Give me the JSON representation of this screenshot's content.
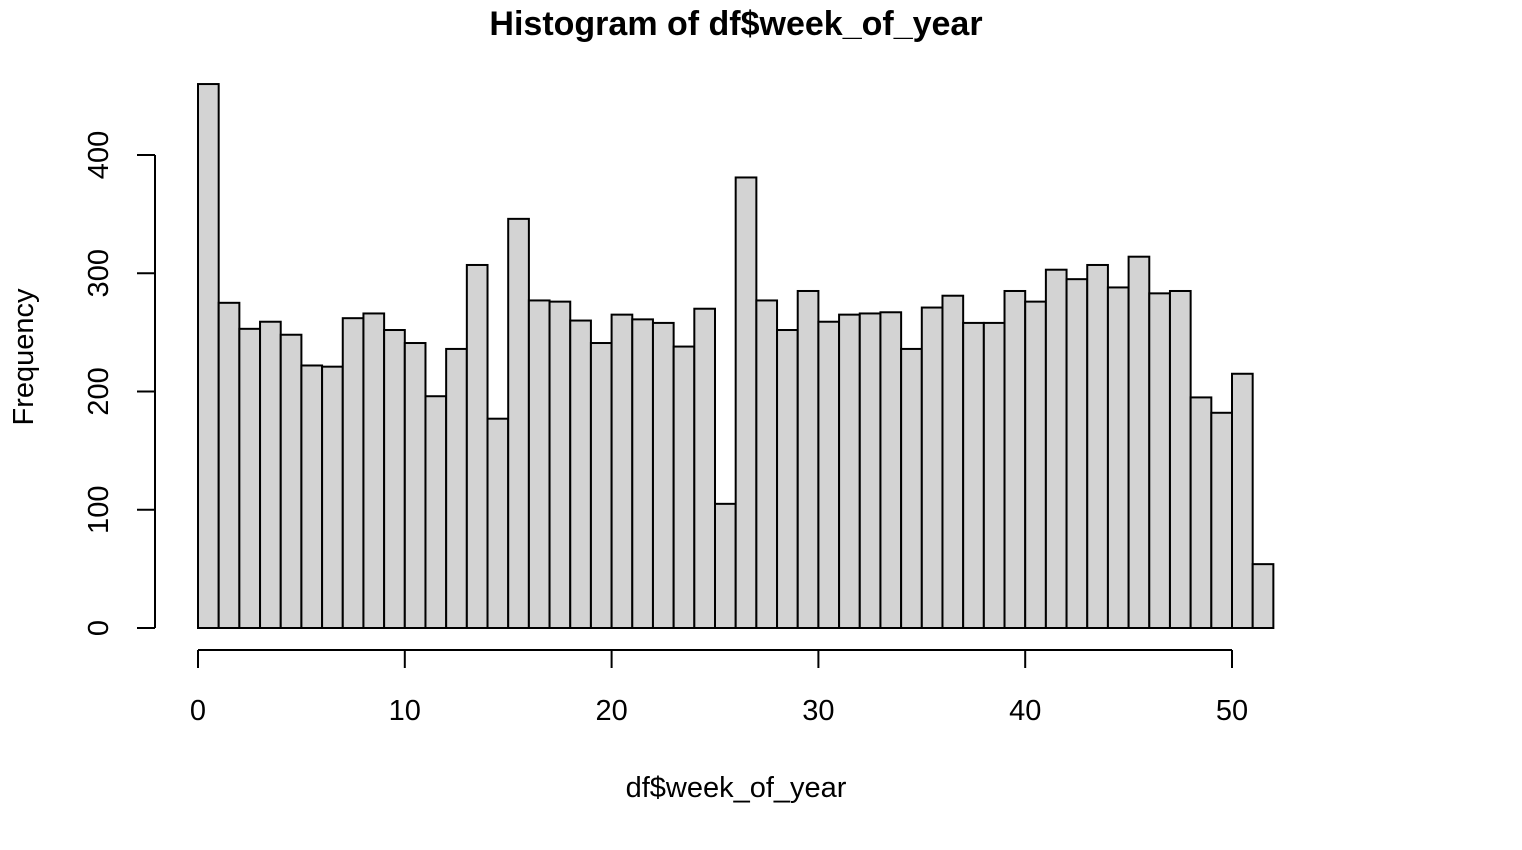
{
  "chart_data": {
    "type": "bar",
    "title": "Histogram of df$week_of_year",
    "xlabel": "df$week_of_year",
    "ylabel": "Frequency",
    "xlim": [
      0,
      52
    ],
    "ylim": [
      0,
      460
    ],
    "bin_width": 1,
    "bins": [
      [
        0,
        1
      ],
      [
        1,
        2
      ],
      [
        2,
        3
      ],
      [
        3,
        4
      ],
      [
        4,
        5
      ],
      [
        5,
        6
      ],
      [
        6,
        7
      ],
      [
        7,
        8
      ],
      [
        8,
        9
      ],
      [
        9,
        10
      ],
      [
        10,
        11
      ],
      [
        11,
        12
      ],
      [
        12,
        13
      ],
      [
        13,
        14
      ],
      [
        14,
        15
      ],
      [
        15,
        16
      ],
      [
        16,
        17
      ],
      [
        17,
        18
      ],
      [
        18,
        19
      ],
      [
        19,
        20
      ],
      [
        20,
        21
      ],
      [
        21,
        22
      ],
      [
        22,
        23
      ],
      [
        23,
        24
      ],
      [
        24,
        25
      ],
      [
        25,
        26
      ],
      [
        26,
        27
      ],
      [
        27,
        28
      ],
      [
        28,
        29
      ],
      [
        29,
        30
      ],
      [
        30,
        31
      ],
      [
        31,
        32
      ],
      [
        32,
        33
      ],
      [
        33,
        34
      ],
      [
        34,
        35
      ],
      [
        35,
        36
      ],
      [
        36,
        37
      ],
      [
        37,
        38
      ],
      [
        38,
        39
      ],
      [
        39,
        40
      ],
      [
        40,
        41
      ],
      [
        41,
        42
      ],
      [
        42,
        43
      ],
      [
        43,
        44
      ],
      [
        44,
        45
      ],
      [
        45,
        46
      ],
      [
        46,
        47
      ],
      [
        47,
        48
      ],
      [
        48,
        49
      ],
      [
        49,
        50
      ],
      [
        50,
        51
      ],
      [
        51,
        52
      ]
    ],
    "values": [
      460,
      275,
      253,
      259,
      248,
      222,
      221,
      262,
      266,
      252,
      241,
      196,
      236,
      307,
      177,
      346,
      277,
      276,
      260,
      241,
      265,
      261,
      258,
      238,
      270,
      105,
      381,
      277,
      252,
      285,
      259,
      265,
      266,
      267,
      236,
      271,
      281,
      258,
      258,
      285,
      276,
      303,
      295,
      307,
      288,
      314,
      283,
      285,
      195,
      182,
      215,
      54
    ],
    "x_ticks": [
      0,
      10,
      20,
      30,
      40,
      50
    ],
    "x_tick_labels": [
      "0",
      "10",
      "20",
      "30",
      "40",
      "50"
    ],
    "y_ticks": [
      0,
      100,
      200,
      300,
      400
    ],
    "y_tick_labels": [
      "0",
      "100",
      "200",
      "300",
      "400"
    ],
    "bar_color": "#d3d3d3",
    "edge_color": "#000000",
    "grid": false,
    "legend": "none"
  }
}
